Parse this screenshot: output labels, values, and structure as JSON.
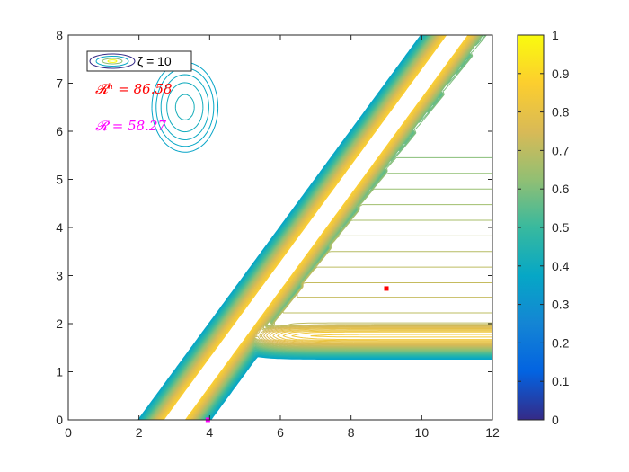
{
  "chart_data": {
    "type": "contour",
    "title": "",
    "xlabel": "",
    "ylabel": "",
    "xlim": [
      0,
      12
    ],
    "ylim": [
      0,
      8
    ],
    "x_ticks": [
      "0",
      "2",
      "4",
      "6",
      "8",
      "10",
      "12"
    ],
    "y_ticks": [
      "0",
      "1",
      "2",
      "3",
      "4",
      "5",
      "6",
      "7",
      "8"
    ],
    "grid": false,
    "colormap": "parula",
    "colorbar": {
      "limits": [
        0,
        1
      ],
      "ticks": [
        "0",
        "0.1",
        "0.2",
        "0.3",
        "0.4",
        "0.5",
        "0.6",
        "0.7",
        "0.8",
        "0.9",
        "1"
      ]
    },
    "legend": {
      "placement": "top-left",
      "entries": [
        {
          "label": "ζ = 10",
          "symbol": "contour-ellipses"
        }
      ]
    },
    "annotations": [
      {
        "text": "𝓡ʰ = 86.58",
        "color": "#ff0000"
      },
      {
        "text": "𝓡 = 58.27",
        "color": "#ff00ff"
      }
    ],
    "markers": [
      {
        "x": 9.0,
        "y": 2.73,
        "color": "#ff0000",
        "shape": "square"
      },
      {
        "x": 3.95,
        "y": 0.0,
        "color": "#ff00ff",
        "shape": "square"
      }
    ]
  }
}
